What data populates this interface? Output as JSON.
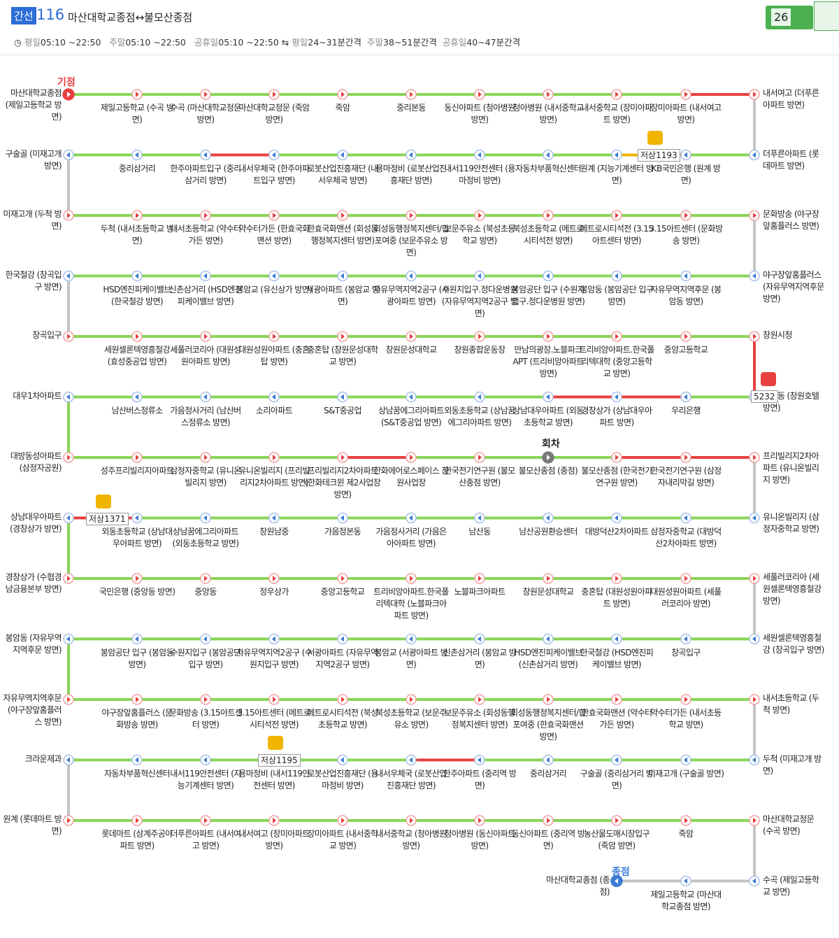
{
  "header": {
    "type_label": "간선",
    "route_number": "116",
    "route_name": "마산대학교종점↔불모산종점",
    "weekday_label": "평일",
    "weekday_time": "05:10 ~22:50",
    "weekend_label": "주말",
    "weekend_time": "05:10 ~22:50",
    "holiday_label": "공휴일",
    "holiday_time": "05:10 ~22:50",
    "int_weekday_label": "평일",
    "int_weekday": "24~31분간격",
    "int_weekend_label": "주말",
    "int_weekend": "38~51분간격",
    "int_holiday_label": "공휴일",
    "int_holiday": "40~47분간격",
    "counter": "26"
  },
  "markers": {
    "start": "기점",
    "turn": "회차",
    "end": "종점"
  },
  "colors": {
    "gray": "#c4c4c4",
    "green": "#8ad457",
    "red": "#e84040",
    "orange": "#f0b400",
    "blue": "#3a7bd5"
  },
  "rows": [
    {
      "dir": "d",
      "left": "마산대학교종점 (제일고등학교 방면)",
      "right": "내서여고 (더푸른아파트 방면)",
      "stops": [
        "제일고등학교 (수곡 방면)",
        "수곡 (마산대학교정문 방면)",
        "마산대학교정문 (죽암 방면)",
        "죽암",
        "중리본동",
        "동신아파트 (청아병원 방면)",
        "청아병원 (내서중학교 방면)",
        "내서중학교 (장미아파트 방면)",
        "장미아파트 (내서여고 방면)"
      ],
      "seg": "gggggggggr"
    },
    {
      "dir": "u",
      "left": "구술골 (미재고개 방면)",
      "right": "더푸른아파트 (롯데마트 방면)",
      "stops": [
        "중리삼거리",
        "한주아파트입구 (중리삼거리 방면)",
        "내서우체국 (한주아파트입구 방면)",
        "로봇산업진흥재단 (내서우체국 방면)",
        "용마정비 (로봇산업진흥재단 방면)",
        "내서119안전센터 (용마정비 방면)",
        "자동차부품혁신센터",
        "원계 (지능기계센터 방면)",
        "KB국민은행 (원계 방면)"
      ],
      "seg": "ggrgggggyg"
    },
    {
      "dir": "d",
      "left": "미재고개 (두척 방면)",
      "right": "문화방송 (야구장앞홈플러스 방면)",
      "stops": [
        "두척 (내서초등학교 방면)",
        "내서초등학교 (약수터가든 방면)",
        "약수터가든 (한효국화맨션 방면)",
        "한효국화맨션 (회성동행정복지센터 방면)",
        "회성동행정복지센터/합포여중 (보문주유소 방면)",
        "보문주유소 (북성초등학교 방면)",
        "북성초등학교 (메트로시티석전 방면)",
        "메트로시티석전 (3.15아트센터 방면)",
        "3.15아트센터 (문화방송 방면)"
      ],
      "seg": "gggggggggg"
    },
    {
      "dir": "u",
      "left": "한국철강 (창곡입구 방면)",
      "right": "야구장앞홈플러스 (자유무역지역후문 방면)",
      "stops": [
        "HSD엔진피케이밸브 (한국철강 방면)",
        "신촌삼거리 (HSD엔진피케이밸브 방면)",
        "봉암교 (유신상가 방면)",
        "서광아파트 (봉암교 방면)",
        "자유무역지역2공구 (서광아파트 방면)",
        "수원지입구.정다운병원 (자유무역지역2공구 방면)",
        "봉암공단 입구 (수원지입구.정다운병원 방면)",
        "봉암동 (봉암공단 입구 방면)",
        "자유무역지역후문 (봉암동 방면)"
      ],
      "seg": "gggggggggg"
    },
    {
      "dir": "d",
      "left": "창곡입구",
      "right": "창원시청",
      "stops": [
        "세원셀론텍영흥철강 (효성중공업 방면)",
        "세풀러코리아 (대원성원아파트 방면)",
        "대원성원아파트 (충혼탑 방면)",
        "충혼탑 (창원문성대학교 방면)",
        "창원문성대학교",
        "창원종합운동장",
        "만남의광장.노블파크APT (트리비앙아파트 방면)",
        "트리비앙아파트.한국폴리텍대학 (중앙고등학교 방면)",
        "중앙고등학교"
      ],
      "seg": "gggggggggg"
    },
    {
      "dir": "u",
      "left": "대우1차아파트",
      "right": "중앙동 (창원호텔 방면)",
      "stops": [
        "남산버스정류소",
        "가음정사거리 (남산버스정류소 방면)",
        "소리아파트",
        "S&T중공업",
        "상남꿈에그리아파트 (S&T중공업 방면)",
        "외동초등학교 (상남꿈에그리아파트 방면)",
        "상남대우아파트 (외동초등학교 방면)",
        "경창상가 (상남대우아파트 방면)",
        "우리은행"
      ],
      "seg": "gggggggrrg"
    },
    {
      "dir": "d",
      "left": "대방동성아파트 (삼정자공원)",
      "right": "프리빌리지2차아파트 (유니온빌리지 방면)",
      "stops": [
        "성주프리빌리지아파트",
        "삼정자중학교 (유니온빌리지 방면)",
        "유니온빌리지 (프리빌리지2차아파트 방면)",
        "프리빌리지2차아파트 (한화테크윈 제2사업장 방면)",
        "한화에어로스페이스 창원사업장",
        "한국전기연구원 (불모산종점 방면)",
        "불모산종점 (종점)",
        "불모산종점 (한국전기연구원 방면)",
        "한국전기연구원 (삼정자내리막길 방면)"
      ],
      "seg": "ggggrgggrr"
    },
    {
      "dir": "u",
      "left": "상남대우아파트 (경창상가 방면)",
      "right": "유니온빌리지 (삼정자중학교 방면)",
      "stops": [
        "외동초등학교 (상남대우아파트 방면)",
        "상남꿈에그리아파트 (외동초등학교 방면)",
        "창원남중",
        "가음정본동",
        "가음정사거리 (가음은아아파트 방면)",
        "남산동",
        "남산공원환승센터",
        "대방덕산2차아파트",
        "삼정자중학교 (대방덕산2차아파트 방면)"
      ],
      "seg": "rgggggggggg"
    },
    {
      "dir": "d",
      "left": "경창상가 (수협경남금융본부 방면)",
      "right": "세풀러코리아 (세원셀론텍영흥철강 방면)",
      "stops": [
        "국민은행 (중앙동 방면)",
        "중앙동",
        "정우상가",
        "중앙고등학교",
        "트리비앙아파트.한국폴리텍대학 (노블파크아파트 방면)",
        "노블파크아파트",
        "창원문성대학교",
        "충혼탑 (대원성원아파트 방면)",
        "대원성원아파트 (세풀러코리아 방면)"
      ],
      "seg": "ggggggggggg"
    },
    {
      "dir": "u",
      "left": "봉암동 (자유무역지역후문 방면)",
      "right": "세원셀론텍영흥철강 (창곡입구 방면)",
      "stops": [
        "봉암공단 입구 (봉암동 방면)",
        "수원지입구 (봉암공단 입구 방면)",
        "자유무역지역2공구 (수원지입구 방면)",
        "서광아파트 (자유무역지역2공구 방면)",
        "봉암교 (서광아파트 방면)",
        "신촌삼거리 (봉암교 방면)",
        "HSD엔진피케이밸브 (신촌삼거리 방면)",
        "한국철강 (HSD엔진피케이밸브 방면)",
        "창곡입구"
      ],
      "seg": "gggggggggg"
    },
    {
      "dir": "d",
      "left": "자유무역지역후문 (야구장앞홈플러스 방면)",
      "right": "내서초등학교 (두척 방면)",
      "stops": [
        "야구장앞홈플러스 (문화방송 방면)",
        "문화방송 (3.15아트센터 방면)",
        "3.15아트센터 (메트로시티석전 방면)",
        "메트로시티석전 (북성초등학교 방면)",
        "북성초등학교 (보문주유소 방면)",
        "보문주유소 (회성동행정복지센터 방면)",
        "회성동행정복지센터/합포여중 (한효국화맨션 방면)",
        "한효국화맨션 (약수터가든 방면)",
        "약수터가든 (내서초등학교 방면)"
      ],
      "seg": "gggggggggg"
    },
    {
      "dir": "u",
      "left": "크라운제과",
      "right": "두척 (미재고개 방면)",
      "stops": [
        "자동차부품혁신센터",
        "내서119안전센터 (지능기계센터 방면)",
        "용마정비 (내서119안전센터 방면)",
        "로봇산업진흥재단 (용마정비 방면)",
        "내서우체국 (로봇산업진흥재단 방면)",
        "한주아파트 (중리역 방면)",
        "중리삼거리",
        "구술골 (중리삼거리 방면)",
        "미재고개 (구술골 방면)"
      ],
      "seg": "gggggrggggg"
    },
    {
      "dir": "d",
      "left": "원계 (롯데마트 방면)",
      "right": "마산대학교정문 (수곡 방면)",
      "stops": [
        "롯데마트 (삼계주공아파트 방면)",
        "더푸른아파트 (내서여고 방면)",
        "내서여고 (장미아파트 방면)",
        "장미아파트 (내서중학교 방면)",
        "내서중학교 (청아병원 방면)",
        "청아병원 (동신아파트 방면)",
        "동신아파트 (중리역 방면)",
        "농산물도매시장입구 (죽암 방면)",
        "죽암"
      ],
      "seg": "gggggggggg"
    }
  ],
  "last_row": {
    "right": "수곡 (제일고등학교 방면)",
    "stops": [
      "마산대학교종점 (종점)",
      "제일고등학교 (마산대학교종점 방면)"
    ]
  },
  "buses": [
    {
      "label": "저상1193"
    },
    {
      "label": "5232"
    },
    {
      "label": "저상1371"
    },
    {
      "label": "저상1195"
    }
  ]
}
